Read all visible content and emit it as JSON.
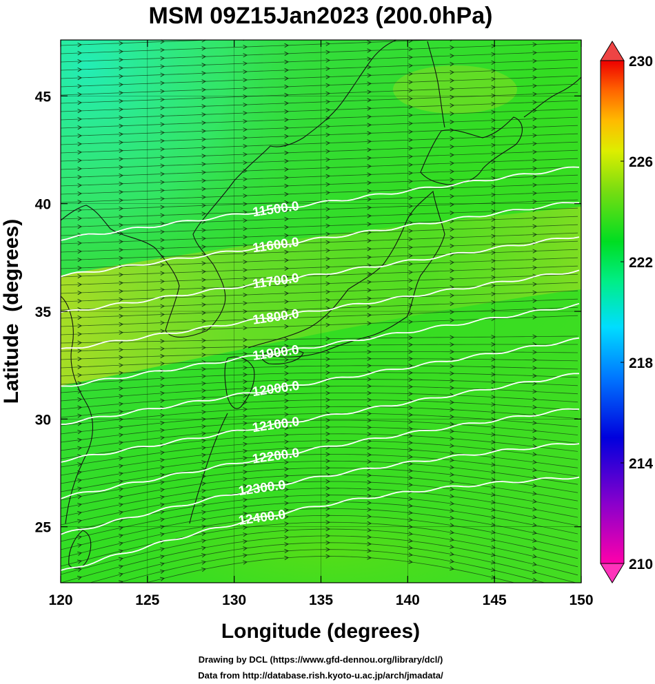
{
  "chart_data": {
    "type": "heatmap",
    "title": "MSM 09Z15Jan2023 (200.0hPa)",
    "xlabel": "Longitude (degrees)",
    "ylabel": "Latitude  (degrees)",
    "xlim": [
      120,
      150
    ],
    "ylim": [
      22.4,
      47.6
    ],
    "x_ticks": [
      "120",
      "125",
      "130",
      "135",
      "140",
      "145",
      "150"
    ],
    "y_ticks": [
      "25",
      "30",
      "35",
      "40",
      "45"
    ],
    "colorbar": {
      "range": [
        210,
        230
      ],
      "tick_labels": [
        "230",
        "226",
        "222",
        "218",
        "214",
        "210"
      ],
      "extend": "both"
    },
    "shading_description_colors": {
      "dominant": "#33dd22",
      "northwest": "#22ee99",
      "yellow_band": "#aadd22"
    },
    "contours": [
      {
        "label": "11500.0",
        "value": 11500
      },
      {
        "label": "11600.0",
        "value": 11600
      },
      {
        "label": "11700.0",
        "value": 11700
      },
      {
        "label": "11800.0",
        "value": 11800
      },
      {
        "label": "11900.0",
        "value": 11900
      },
      {
        "label": "12000.0",
        "value": 12000
      },
      {
        "label": "12100.0",
        "value": 12100
      },
      {
        "label": "12200.0",
        "value": 12200
      },
      {
        "label": "12300.0",
        "value": 12300
      },
      {
        "label": "12400.0",
        "value": 12400
      }
    ],
    "contour_color": "#ffffff",
    "wind_vectors": "westerly streamlines",
    "grid": true
  },
  "credits": {
    "line1": "Drawing by DCL (https://www.gfd-dennou.org/library/dcl/)",
    "line2": "Data from http://database.rish.kyoto-u.ac.jp/arch/jmadata/"
  }
}
